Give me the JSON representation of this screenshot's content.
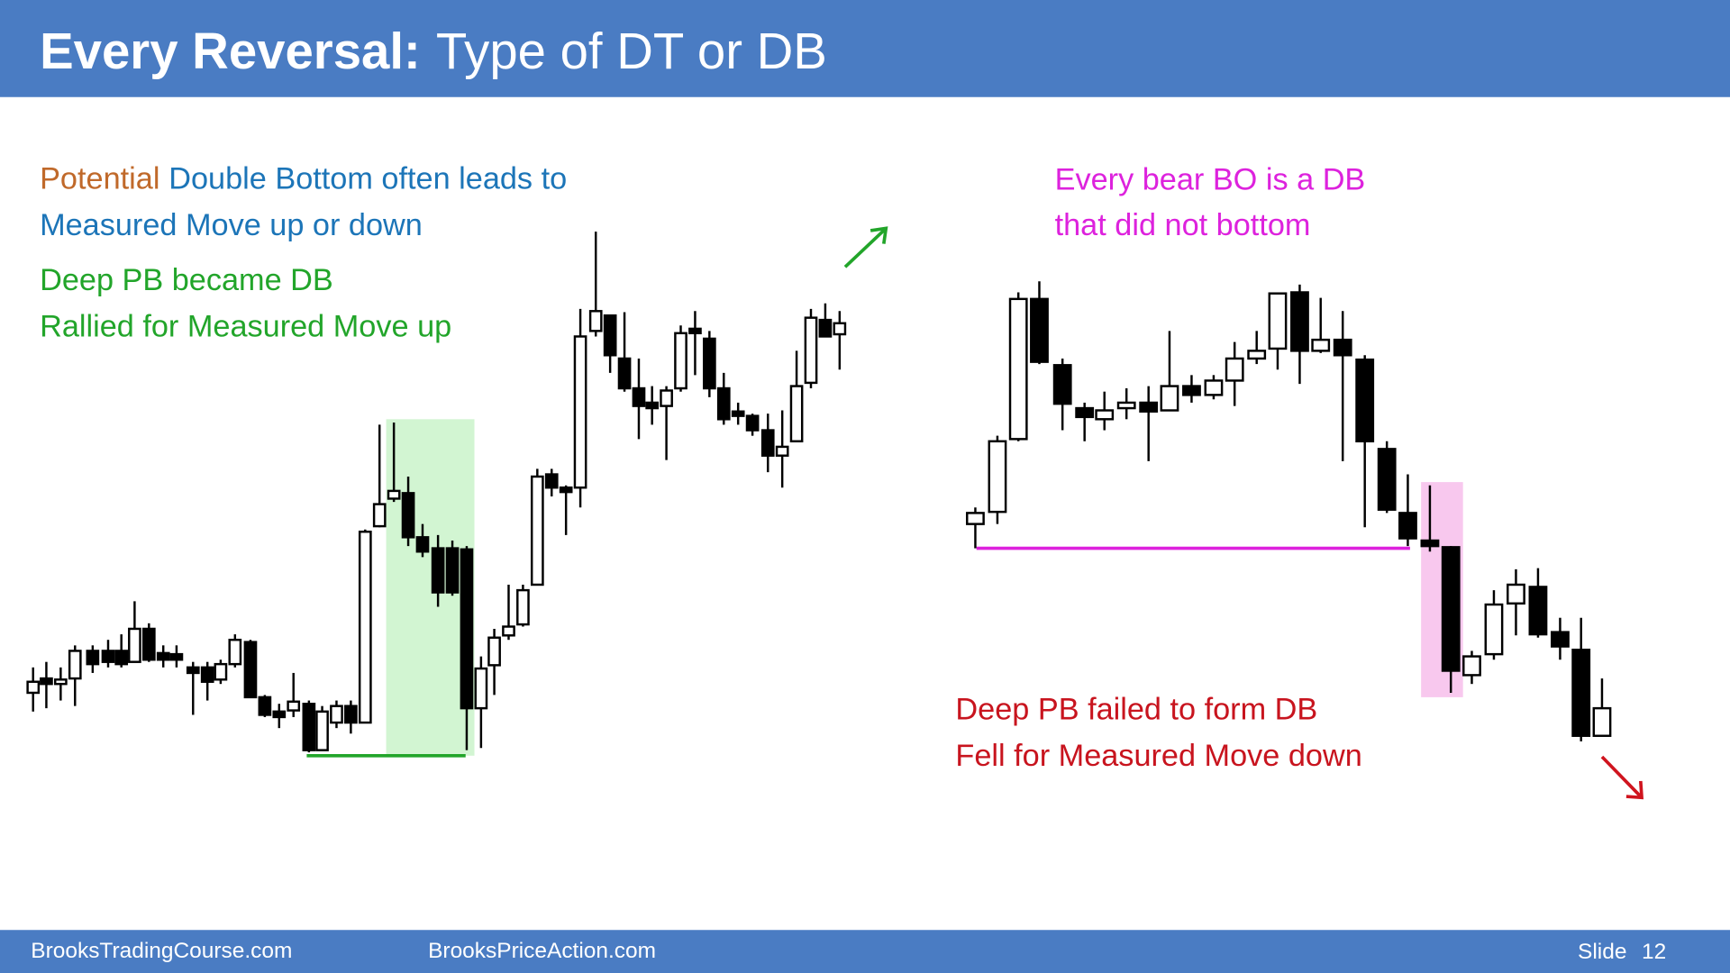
{
  "header": {
    "title_bold": "Every Reversal:",
    "title_rest": "Type of DT or DB"
  },
  "left_notes": {
    "potential": "Potential",
    "line1_rest": "Double Bottom often leads to",
    "line2": "Measured Move up or down",
    "line3": "Deep PB became DB",
    "line4": "Rallied for Measured Move up"
  },
  "right_notes": {
    "line1": "Every bear BO is a DB",
    "line2": "that did not bottom",
    "line3": "Deep PB failed to form DB",
    "line4": "Fell for Measured Move down"
  },
  "footer": {
    "site1": "BrooksTradingCourse.com",
    "site2": "BrooksPriceAction.com",
    "slide_label": "Slide",
    "slide_number": "12"
  }
}
